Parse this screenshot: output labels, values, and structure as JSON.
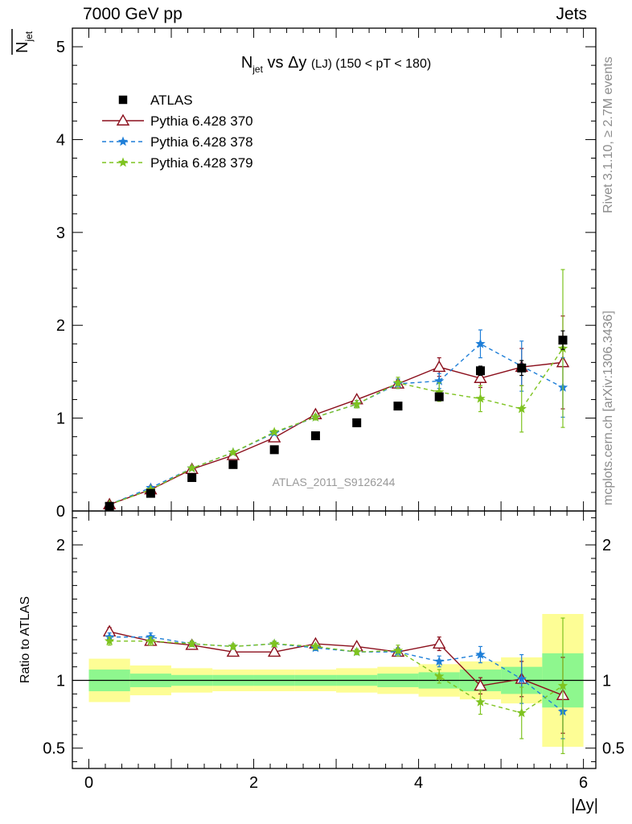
{
  "header": {
    "left": "7000 GeV pp",
    "right": "Jets"
  },
  "side_labels": {
    "rivet": "Rivet 3.1.10, ≥ 2.7M events",
    "mcplots": "mcplots.cern.ch [arXiv:1306.3436]"
  },
  "watermark": "ATLAS_2011_S9126244",
  "chart_data": [
    {
      "type": "scatter",
      "title": {
        "main": "N",
        "sub": "jet",
        "mid": " vs Δy ",
        "small": "(LJ)",
        "tail": " (150 < pT < 180)"
      },
      "ylabel": {
        "main": "N",
        "sub": "jet"
      },
      "xlim": [
        -0.2,
        6.15
      ],
      "ylim": [
        0,
        5.2
      ],
      "yticks": [
        0,
        1,
        2,
        3,
        4,
        5
      ],
      "ytick_labels": [
        "0",
        "1",
        "2",
        "3",
        "4",
        "5"
      ],
      "x": [
        0.25,
        0.75,
        1.25,
        1.75,
        2.25,
        2.75,
        3.25,
        3.75,
        4.25,
        4.75,
        5.25,
        5.75
      ],
      "legend_position": "top-left",
      "series": [
        {
          "name": "ATLAS",
          "marker": "square",
          "color": "#000000",
          "values": [
            0.05,
            0.19,
            0.36,
            0.5,
            0.66,
            0.81,
            0.95,
            1.13,
            1.23,
            1.51,
            1.54,
            1.84
          ],
          "errors": [
            0.01,
            0.01,
            0.01,
            0.01,
            0.01,
            0.01,
            0.01,
            0.02,
            0.03,
            0.05,
            0.08,
            0.1
          ]
        },
        {
          "name": "Pythia 6.428 370",
          "marker": "triangle",
          "color": "#8b0f1c",
          "dash": "solid",
          "values": [
            0.07,
            0.23,
            0.45,
            0.6,
            0.79,
            1.04,
            1.2,
            1.37,
            1.55,
            1.43,
            1.55,
            1.6
          ],
          "errors": [
            0.01,
            0.01,
            0.02,
            0.02,
            0.02,
            0.03,
            0.03,
            0.05,
            0.1,
            0.1,
            0.2,
            0.5
          ]
        },
        {
          "name": "Pythia 6.428 378",
          "marker": "star",
          "color": "#1f7fd8",
          "dash": "5,4",
          "values": [
            0.07,
            0.25,
            0.46,
            0.63,
            0.84,
            1.01,
            1.15,
            1.37,
            1.4,
            1.8,
            1.56,
            1.33
          ],
          "errors": [
            0.01,
            0.01,
            0.02,
            0.02,
            0.02,
            0.03,
            0.04,
            0.05,
            0.08,
            0.15,
            0.27,
            0.32
          ]
        },
        {
          "name": "Pythia 6.428 379",
          "marker": "star",
          "color": "#7ec320",
          "dash": "5,4",
          "values": [
            0.07,
            0.23,
            0.46,
            0.63,
            0.85,
            1.01,
            1.15,
            1.38,
            1.28,
            1.21,
            1.1,
            1.75
          ],
          "errors": [
            0.01,
            0.01,
            0.02,
            0.02,
            0.02,
            0.03,
            0.04,
            0.06,
            0.1,
            0.14,
            0.25,
            0.85
          ]
        }
      ]
    },
    {
      "type": "scatter",
      "ylabel": "Ratio to ATLAS",
      "xlabel": "|Δy|",
      "xlim": [
        -0.2,
        6.15
      ],
      "ylim": [
        0.35,
        2.25
      ],
      "xticks": [
        0,
        2,
        4,
        6
      ],
      "xtick_labels": [
        "0",
        "2",
        "4",
        "6"
      ],
      "yticks": [
        0.5,
        1,
        2
      ],
      "ytick_labels": [
        "0.5",
        "1",
        "2"
      ],
      "x": [
        0.25,
        0.75,
        1.25,
        1.75,
        2.25,
        2.75,
        3.25,
        3.75,
        4.25,
        4.75,
        5.25,
        5.75
      ],
      "bin_edges": [
        0,
        0.5,
        1.0,
        1.5,
        2.0,
        2.5,
        3.0,
        3.5,
        4.0,
        4.5,
        5.0,
        5.5,
        6.0
      ],
      "band_colors": {
        "total": "#fdfd95",
        "stat": "#8ef78e"
      },
      "band_total": [
        [
          0.84,
          1.16
        ],
        [
          0.89,
          1.11
        ],
        [
          0.91,
          1.09
        ],
        [
          0.92,
          1.08
        ],
        [
          0.92,
          1.08
        ],
        [
          0.92,
          1.08
        ],
        [
          0.91,
          1.09
        ],
        [
          0.9,
          1.1
        ],
        [
          0.88,
          1.12
        ],
        [
          0.86,
          1.14
        ],
        [
          0.83,
          1.17
        ],
        [
          0.51,
          1.49
        ]
      ],
      "band_stat": [
        [
          0.92,
          1.08
        ],
        [
          0.95,
          1.05
        ],
        [
          0.96,
          1.04
        ],
        [
          0.96,
          1.04
        ],
        [
          0.96,
          1.04
        ],
        [
          0.96,
          1.04
        ],
        [
          0.96,
          1.04
        ],
        [
          0.95,
          1.05
        ],
        [
          0.94,
          1.06
        ],
        [
          0.92,
          1.08
        ],
        [
          0.9,
          1.1
        ],
        [
          0.8,
          1.2
        ]
      ],
      "series": [
        {
          "name": "Pythia 6.428 370",
          "marker": "triangle",
          "color": "#8b0f1c",
          "dash": "solid",
          "values": [
            1.36,
            1.29,
            1.26,
            1.21,
            1.21,
            1.27,
            1.25,
            1.21,
            1.27,
            0.96,
            1.01,
            0.89
          ],
          "errors": [
            0.03,
            0.02,
            0.02,
            0.02,
            0.02,
            0.02,
            0.02,
            0.03,
            0.05,
            0.06,
            0.13,
            0.28
          ]
        },
        {
          "name": "Pythia 6.428 378",
          "marker": "star",
          "color": "#1f7fd8",
          "dash": "5,4",
          "values": [
            1.32,
            1.32,
            1.27,
            1.25,
            1.27,
            1.24,
            1.21,
            1.21,
            1.14,
            1.19,
            1.01,
            0.77
          ],
          "errors": [
            0.03,
            0.03,
            0.02,
            0.02,
            0.02,
            0.02,
            0.02,
            0.03,
            0.04,
            0.06,
            0.18,
            0.2
          ]
        },
        {
          "name": "Pythia 6.428 379",
          "marker": "star",
          "color": "#7ec320",
          "dash": "5,4",
          "values": [
            1.29,
            1.29,
            1.27,
            1.25,
            1.27,
            1.25,
            1.21,
            1.22,
            1.03,
            0.84,
            0.76,
            0.96
          ],
          "errors": [
            0.03,
            0.03,
            0.02,
            0.02,
            0.02,
            0.02,
            0.02,
            0.04,
            0.05,
            0.09,
            0.19,
            0.5
          ]
        }
      ]
    }
  ]
}
